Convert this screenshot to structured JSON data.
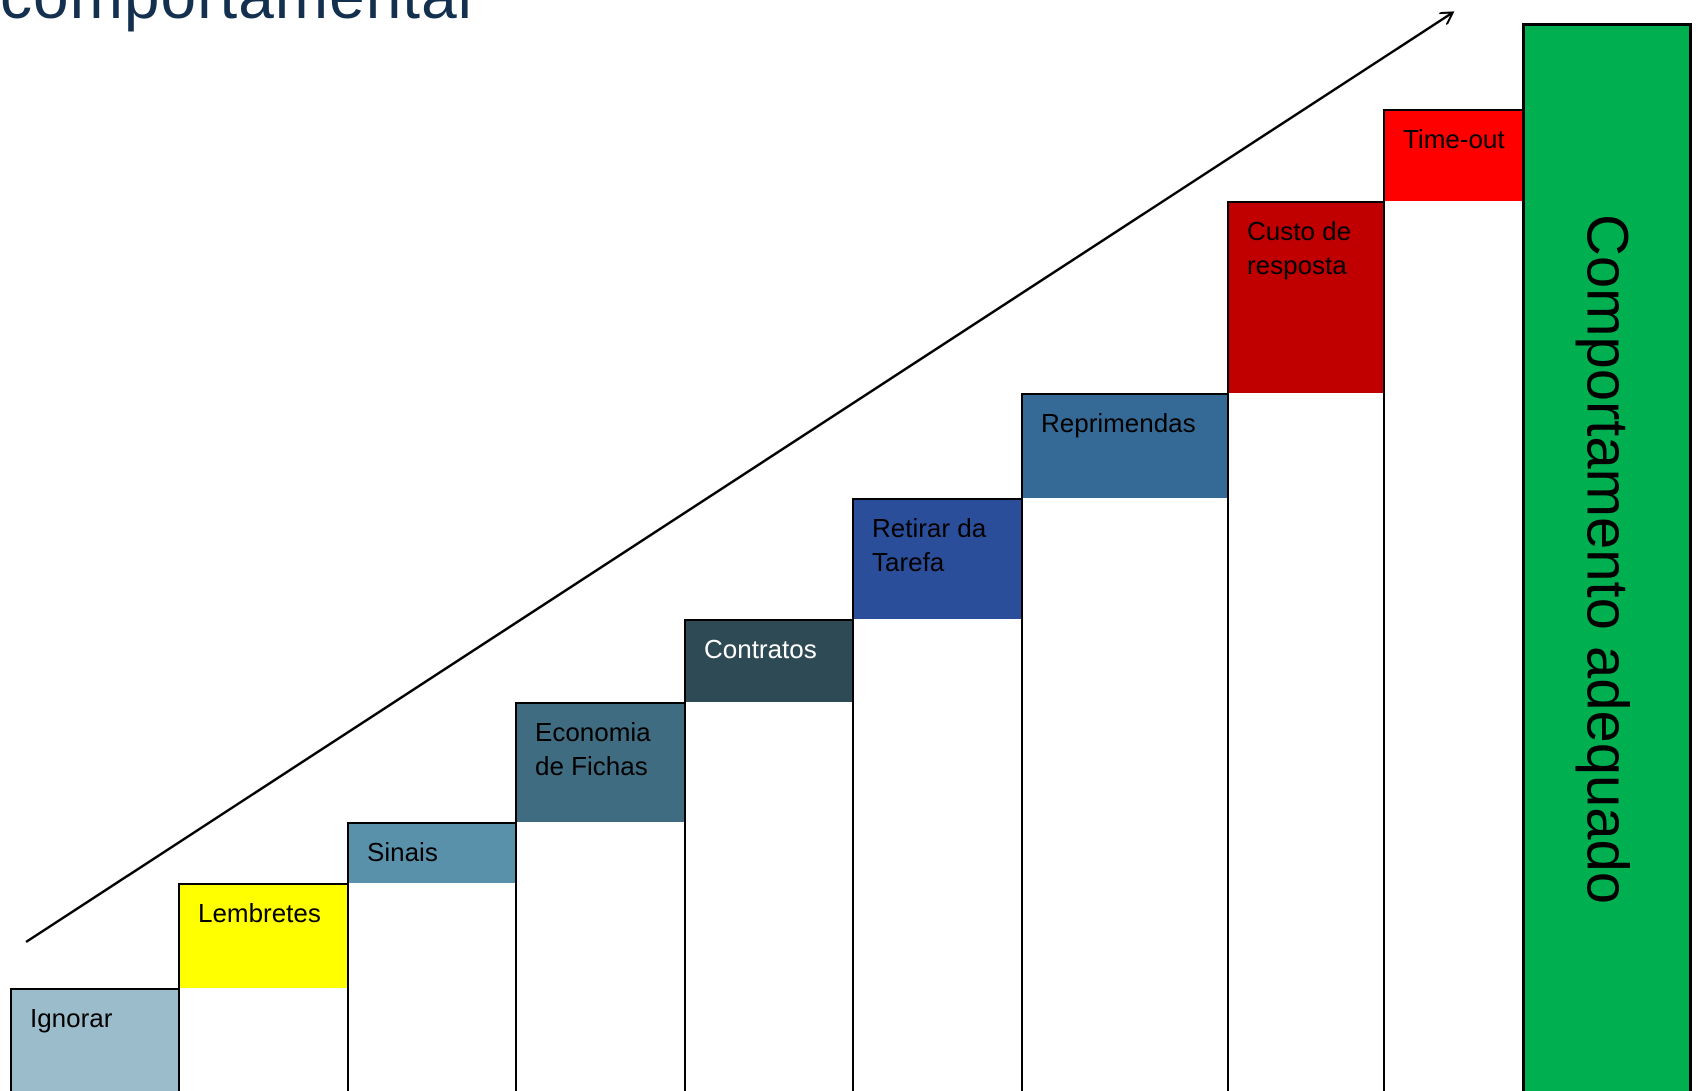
{
  "title": "comportamental",
  "steps": [
    {
      "label": "Ignorar",
      "color": "#9bbccb",
      "text_color": "#000000"
    },
    {
      "label": "Lembretes",
      "color": "#ffff00",
      "text_color": "#000000"
    },
    {
      "label": "Sinais",
      "color": "#5990aa",
      "text_color": "#000000"
    },
    {
      "label": "Economia de Fichas",
      "color": "#3f6c80",
      "text_color": "#000000"
    },
    {
      "label": "Contratos",
      "color": "#2e4a55",
      "text_color": "#ffffff"
    },
    {
      "label": "Retirar da Tarefa",
      "color": "#2b4e9a",
      "text_color": "#000000"
    },
    {
      "label": "Reprimendas",
      "color": "#356a97",
      "text_color": "#000000"
    },
    {
      "label": "Custo de resposta",
      "color": "#c00000",
      "text_color": "#000000"
    },
    {
      "label": "Time-out",
      "color": "#ff0000",
      "text_color": "#000000"
    }
  ],
  "goal": {
    "label": "Comportamento adequado",
    "color": "#00b050"
  }
}
